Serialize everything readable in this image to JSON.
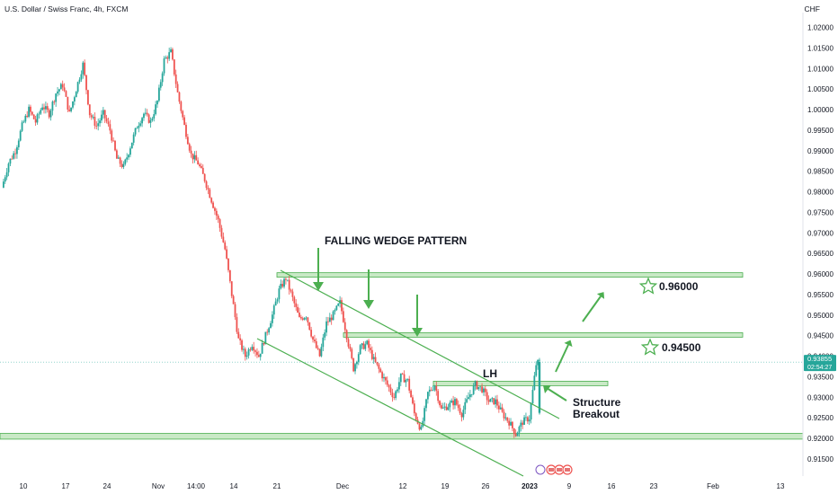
{
  "header": {
    "title": "U.S. Dollar / Swiss Franc, 4h, FXCM",
    "currency": "CHF"
  },
  "price_tag": {
    "price": "0.93855",
    "countdown": "02:54:27"
  },
  "colors": {
    "up": "#26a69a",
    "down": "#ef5350",
    "zone_fill": "#b7e1b3",
    "zone_stroke": "#4caf50",
    "annotation": "#4caf50"
  },
  "annotations": {
    "pattern": "FALLING WEDGE PATTERN",
    "lh": "LH",
    "breakout_line1": "Structure",
    "breakout_line2": "Breakout",
    "target1": "0.96000",
    "target2": "0.94500"
  },
  "chart_data": {
    "type": "candlestick",
    "title": "U.S. Dollar / Swiss Franc, 4h, FXCM",
    "y_unit": "CHF",
    "ylim": [
      0.9125,
      1.0225
    ],
    "y_ticks": [
      "1.02000",
      "1.01500",
      "1.01000",
      "1.00500",
      "1.00000",
      "0.99500",
      "0.99000",
      "0.98500",
      "0.98000",
      "0.97500",
      "0.97000",
      "0.96500",
      "0.96000",
      "0.95500",
      "0.95000",
      "0.94500",
      "0.94000",
      "0.93500",
      "0.93000",
      "0.92500",
      "0.92000",
      "0.91500"
    ],
    "x_ticks": [
      "10",
      "17",
      "24",
      "Nov",
      "14:00",
      "14",
      "21",
      "Dec",
      "12",
      "19",
      "26",
      "2023",
      "9",
      "16",
      "23",
      "Feb",
      "13"
    ],
    "close_path": [
      [
        0,
        0.981
      ],
      [
        2,
        0.987
      ],
      [
        4,
        0.99
      ],
      [
        6,
        0.996
      ],
      [
        8,
        1.0
      ],
      [
        10,
        0.997
      ],
      [
        12,
        1.001
      ],
      [
        14,
        0.999
      ],
      [
        16,
        1.004
      ],
      [
        18,
        1.006
      ],
      [
        20,
        0.999
      ],
      [
        22,
        1.005
      ],
      [
        24,
        1.011
      ],
      [
        26,
        0.999
      ],
      [
        28,
        0.996
      ],
      [
        30,
        0.999
      ],
      [
        32,
        0.995
      ],
      [
        34,
        0.988
      ],
      [
        36,
        0.986
      ],
      [
        38,
        0.991
      ],
      [
        40,
        0.996
      ],
      [
        42,
        0.999
      ],
      [
        44,
        0.997
      ],
      [
        46,
        1.002
      ],
      [
        48,
        1.012
      ],
      [
        50,
        1.014
      ],
      [
        52,
        1.004
      ],
      [
        54,
        0.996
      ],
      [
        56,
        0.989
      ],
      [
        58,
        0.987
      ],
      [
        60,
        0.983
      ],
      [
        62,
        0.978
      ],
      [
        64,
        0.973
      ],
      [
        66,
        0.966
      ],
      [
        68,
        0.955
      ],
      [
        70,
        0.944
      ],
      [
        72,
        0.94
      ],
      [
        74,
        0.943
      ],
      [
        76,
        0.94
      ],
      [
        78,
        0.945
      ],
      [
        80,
        0.95
      ],
      [
        82,
        0.956
      ],
      [
        84,
        0.959
      ],
      [
        86,
        0.954
      ],
      [
        88,
        0.949
      ],
      [
        90,
        0.95
      ],
      [
        92,
        0.944
      ],
      [
        94,
        0.94
      ],
      [
        96,
        0.948
      ],
      [
        98,
        0.95
      ],
      [
        100,
        0.953
      ],
      [
        102,
        0.945
      ],
      [
        104,
        0.937
      ],
      [
        106,
        0.942
      ],
      [
        108,
        0.943
      ],
      [
        110,
        0.939
      ],
      [
        112,
        0.936
      ],
      [
        114,
        0.933
      ],
      [
        116,
        0.93
      ],
      [
        118,
        0.935
      ],
      [
        120,
        0.934
      ],
      [
        122,
        0.926
      ],
      [
        124,
        0.922
      ],
      [
        126,
        0.931
      ],
      [
        128,
        0.933
      ],
      [
        130,
        0.927
      ],
      [
        132,
        0.928
      ],
      [
        134,
        0.929
      ],
      [
        136,
        0.926
      ],
      [
        138,
        0.93
      ],
      [
        140,
        0.933
      ],
      [
        142,
        0.932
      ],
      [
        144,
        0.929
      ],
      [
        146,
        0.929
      ],
      [
        148,
        0.926
      ],
      [
        150,
        0.924
      ],
      [
        152,
        0.921
      ],
      [
        154,
        0.924
      ],
      [
        156,
        0.925
      ],
      [
        158,
        0.938
      ],
      [
        159,
        0.9386
      ]
    ],
    "zones": [
      {
        "name": "support",
        "from": 0.9198,
        "to": 0.9212
      },
      {
        "name": "resistance 0.96000",
        "from": 0.9594,
        "to": 0.9603
      },
      {
        "name": "resistance 0.94500",
        "from": 0.9451,
        "to": 0.9457
      },
      {
        "name": "LH level",
        "from": 0.9332,
        "to": 0.9339
      }
    ]
  }
}
